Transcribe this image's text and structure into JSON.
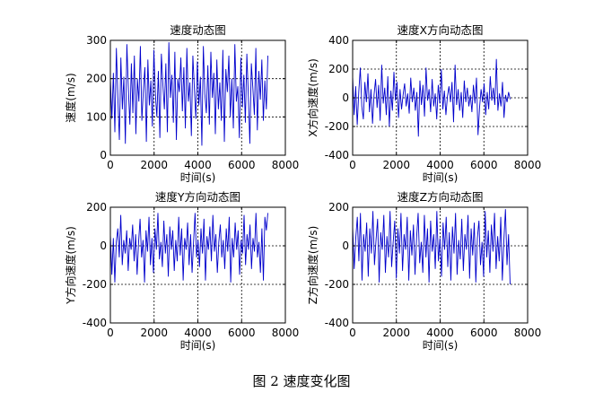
{
  "caption": "图 2  速度变化图",
  "chart_data": [
    {
      "type": "line",
      "title": "速度动态图",
      "xlabel": "时间(s)",
      "ylabel": "速度(m/s)",
      "xlim": [
        0,
        8000
      ],
      "ylim": [
        0,
        300
      ],
      "xticks": [
        0,
        2000,
        4000,
        6000,
        8000
      ],
      "yticks": [
        0,
        100,
        200,
        300
      ],
      "grid": "dotted",
      "color": "#0000cc",
      "x_range": [
        0,
        7200
      ],
      "series": [
        {
          "values": [
            200,
            95,
            215,
            60,
            280,
            150,
            40,
            255,
            120,
            205,
            30,
            290,
            175,
            80,
            240,
            110,
            260,
            55,
            200,
            140,
            285,
            90,
            170,
            230,
            35,
            250,
            130,
            195,
            75,
            275,
            160,
            100,
            220,
            45,
            265,
            185,
            120,
            240,
            60,
            295,
            150,
            210,
            85,
            270,
            40,
            200,
            165,
            255,
            115,
            230,
            70,
            280,
            140,
            190,
            50,
            260,
            175,
            95,
            245,
            130,
            205,
            25,
            285,
            160,
            110,
            235,
            80,
            270,
            150,
            215,
            55,
            250,
            120,
            190,
            90,
            275,
            35,
            225,
            165,
            260,
            100,
            200,
            70,
            290,
            140,
            180,
            45,
            255,
            125,
            210,
            85,
            265,
            155,
            30,
            240,
            175,
            105,
            280,
            65,
            220,
            145,
            250,
            90,
            195,
            120,
            260
          ]
        }
      ]
    },
    {
      "type": "line",
      "title": "速度X方向动态图",
      "xlabel": "时间(s)",
      "ylabel": "X方向速度(m/s)",
      "xlim": [
        0,
        8000
      ],
      "ylim": [
        -400,
        400
      ],
      "xticks": [
        0,
        2000,
        4000,
        6000,
        8000
      ],
      "yticks": [
        -400,
        -200,
        0,
        200,
        400
      ],
      "grid": "dotted",
      "color": "#0000cc",
      "x_range": [
        0,
        7200
      ],
      "series": [
        {
          "values": [
            150,
            -120,
            80,
            -190,
            40,
            210,
            -60,
            -150,
            110,
            -30,
            170,
            -100,
            60,
            -180,
            20,
            130,
            -70,
            90,
            -160,
            230,
            -40,
            70,
            -120,
            150,
            -200,
            50,
            -90,
            180,
            -20,
            110,
            -140,
            60,
            -80,
            20,
            100,
            -60,
            30,
            -110,
            140,
            -30,
            70,
            -90,
            40,
            -270,
            120,
            -50,
            90,
            -130,
            210,
            -20,
            60,
            -100,
            130,
            -60,
            30,
            -150,
            90,
            -40,
            200,
            -80,
            50,
            -120,
            10,
            80,
            -30,
            110,
            -170,
            230,
            -50,
            60,
            -90,
            40,
            -140,
            120,
            -30,
            70,
            -60,
            20,
            -100,
            90,
            -40,
            140,
            -260,
            -70,
            60,
            -30,
            100,
            -120,
            40,
            -80,
            150,
            -20,
            70,
            -50,
            270,
            -90,
            30,
            -60,
            110,
            -140,
            20,
            -30,
            40,
            -10
          ]
        }
      ]
    },
    {
      "type": "line",
      "title": "速度Y方向动态图",
      "xlabel": "时间(s)",
      "ylabel": "Y方向速度(m/s)",
      "xlim": [
        0,
        8000
      ],
      "ylim": [
        -400,
        200
      ],
      "xticks": [
        0,
        2000,
        4000,
        6000,
        8000
      ],
      "yticks": [
        -400,
        -200,
        0,
        200
      ],
      "grid": "dotted",
      "color": "#0000cc",
      "x_range": [
        0,
        7200
      ],
      "series": [
        {
          "values": [
            60,
            -150,
            40,
            -190,
            20,
            90,
            -60,
            160,
            -100,
            30,
            -40,
            80,
            -130,
            40,
            -20,
            110,
            -80,
            60,
            -150,
            20,
            140,
            -60,
            30,
            -190,
            80,
            -30,
            150,
            -100,
            40,
            -140,
            90,
            -20,
            170,
            -70,
            20,
            -110,
            130,
            -40,
            60,
            -160,
            100,
            -20,
            80,
            -130,
            30,
            -80,
            150,
            -50,
            90,
            -180,
            40,
            -20,
            120,
            -100,
            60,
            -140,
            20,
            170,
            -60,
            30,
            -110,
            90,
            -40,
            140,
            -180,
            50,
            -20,
            100,
            -80,
            160,
            -30,
            60,
            -140,
            20,
            110,
            -60,
            30,
            -120,
            90,
            -30,
            150,
            -190,
            40,
            -60,
            120,
            -20,
            80,
            -150,
            30,
            -40,
            160,
            -100,
            60,
            -20,
            110,
            -120,
            40,
            -30,
            170,
            -60,
            20,
            -140,
            90,
            -180,
            150,
            80,
            170
          ]
        }
      ]
    },
    {
      "type": "line",
      "title": "速度Z方向动态图",
      "xlabel": "时间(s)",
      "ylabel": "Z方向速度(m/s)",
      "xlim": [
        0,
        8000
      ],
      "ylim": [
        -400,
        200
      ],
      "xticks": [
        0,
        2000,
        4000,
        6000,
        8000
      ],
      "yticks": [
        -400,
        -200,
        0,
        200
      ],
      "grid": "dotted",
      "color": "#0000cc",
      "x_range": [
        0,
        7200
      ],
      "series": [
        {
          "values": [
            100,
            -120,
            40,
            150,
            -80,
            170,
            -180,
            60,
            -30,
            120,
            -160,
            90,
            -40,
            180,
            -100,
            30,
            140,
            -190,
            70,
            -20,
            160,
            -140,
            50,
            -60,
            180,
            -110,
            20,
            130,
            -170,
            90,
            -40,
            170,
            -130,
            60,
            -20,
            150,
            -180,
            80,
            -50,
            110,
            -150,
            40,
            170,
            -90,
            20,
            -140,
            160,
            -60,
            90,
            -190,
            130,
            -30,
            60,
            -120,
            180,
            -80,
            40,
            -160,
            120,
            -20,
            150,
            -110,
            70,
            -180,
            100,
            -40,
            170,
            -150,
            30,
            -70,
            140,
            -130,
            60,
            -20,
            160,
            -170,
            90,
            -50,
            120,
            -190,
            40,
            130,
            -100,
            20,
            -160,
            180,
            -60,
            80,
            -140,
            110,
            -30,
            170,
            -120,
            50,
            -80,
            150,
            -180,
            30,
            190,
            -100,
            60,
            -200
          ]
        }
      ]
    }
  ]
}
